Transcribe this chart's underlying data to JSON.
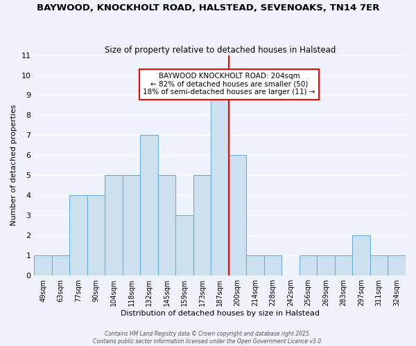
{
  "title": "BAYWOOD, KNOCKHOLT ROAD, HALSTEAD, SEVENOAKS, TN14 7ER",
  "subtitle": "Size of property relative to detached houses in Halstead",
  "xlabel": "Distribution of detached houses by size in Halstead",
  "ylabel": "Number of detached properties",
  "bar_color": "#cce0f0",
  "bar_edge_color": "#6aaed6",
  "background_color": "#edf2fb",
  "grid_color": "#ffffff",
  "bin_labels": [
    "49sqm",
    "63sqm",
    "77sqm",
    "90sqm",
    "104sqm",
    "118sqm",
    "132sqm",
    "145sqm",
    "159sqm",
    "173sqm",
    "187sqm",
    "200sqm",
    "214sqm",
    "228sqm",
    "242sqm",
    "256sqm",
    "269sqm",
    "283sqm",
    "297sqm",
    "311sqm",
    "324sqm"
  ],
  "bar_heights": [
    1,
    1,
    4,
    4,
    5,
    5,
    7,
    5,
    3,
    5,
    9,
    6,
    1,
    1,
    0,
    1,
    1,
    1,
    2,
    1,
    1
  ],
  "ylim": [
    0,
    11
  ],
  "yticks": [
    0,
    1,
    2,
    3,
    4,
    5,
    6,
    7,
    8,
    9,
    10,
    11
  ],
  "red_line_index": 11,
  "annotation_title": "BAYWOOD KNOCKHOLT ROAD: 204sqm",
  "annotation_line1": "← 82% of detached houses are smaller (50)",
  "annotation_line2": "18% of semi-detached houses are larger (11) →",
  "footnote1": "Contains HM Land Registry data © Crown copyright and database right 2025.",
  "footnote2": "Contains public sector information licensed under the Open Government Licence v3.0."
}
